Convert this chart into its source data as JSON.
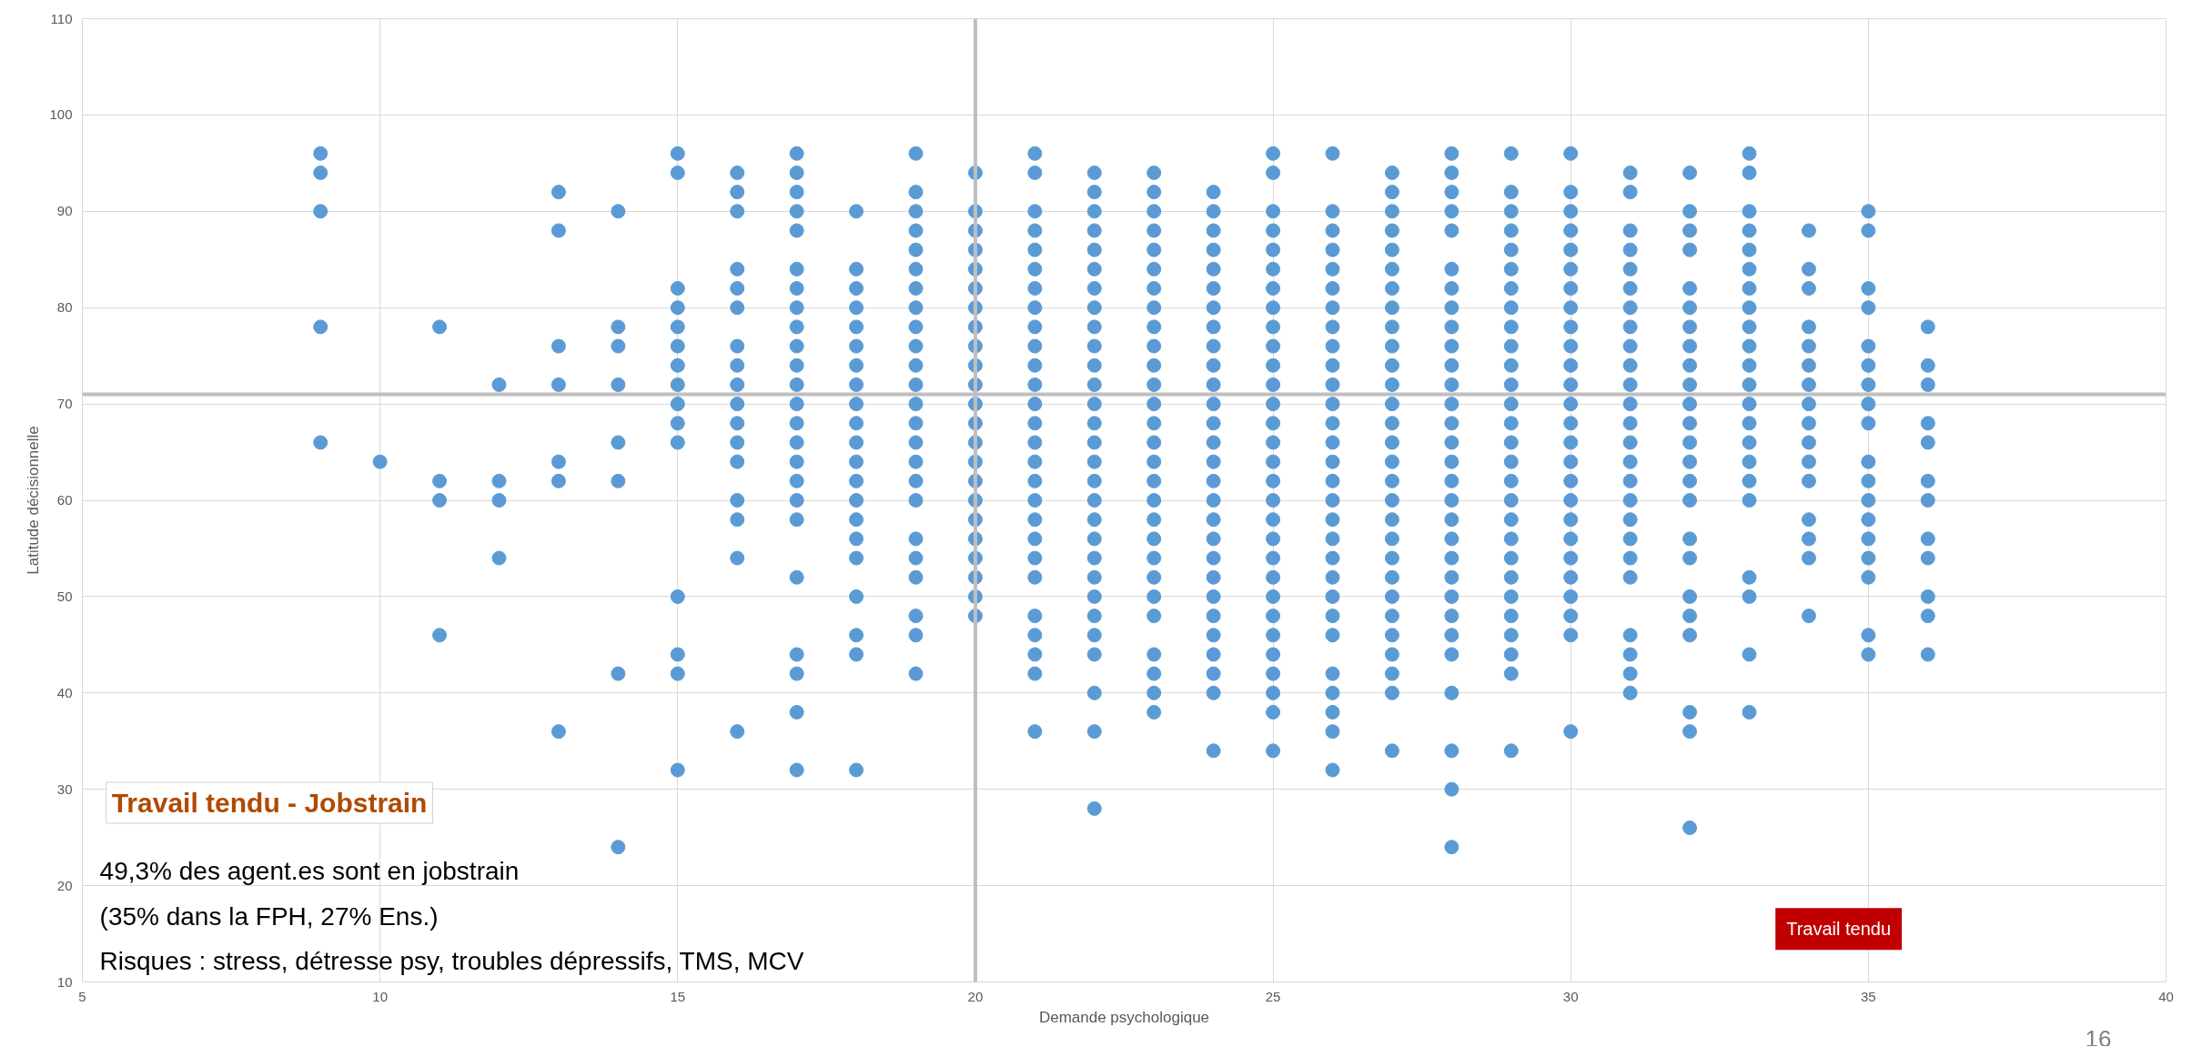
{
  "chart_data": {
    "type": "scatter",
    "xlabel": "Demande psychologique",
    "ylabel": "Latitude décisionnelle",
    "xlim": [
      5,
      40
    ],
    "ylim": [
      10,
      110
    ],
    "xticks": [
      5,
      10,
      15,
      20,
      25,
      30,
      35,
      40
    ],
    "yticks": [
      10,
      20,
      30,
      40,
      50,
      60,
      70,
      80,
      90,
      100,
      110
    ],
    "grid": true,
    "marker": "circle",
    "ref_lines": [
      {
        "axis": "x",
        "value": 20,
        "color": "#bfbfbf"
      },
      {
        "axis": "y",
        "value": 71,
        "color": "#bfbfbf"
      }
    ],
    "annotations": [
      "Travail tendu - Jobstrain",
      "49,3% des agent.es sont en jobstrain",
      "(35% dans la FPH, 27% Ens.)",
      "Risques : stress, détresse psy, troubles dépressifs, TMS, MCV",
      "Travail tendu",
      "16"
    ],
    "series": [
      {
        "color": "#5b9bd5",
        "x": [
          9,
          9,
          9,
          9,
          9
        ],
        "values": [
          96,
          94,
          90,
          78,
          66
        ]
      },
      {
        "color": "#5b9bd5",
        "x": [
          10
        ],
        "values": [
          64
        ]
      },
      {
        "color": "#5b9bd5",
        "x": [
          11,
          11,
          11,
          11
        ],
        "values": [
          78,
          62,
          60,
          46
        ]
      },
      {
        "color": "#5b9bd5",
        "x": [
          12,
          12,
          12,
          12
        ],
        "values": [
          72,
          62,
          60,
          54
        ]
      },
      {
        "color": "#5b9bd5",
        "x": [
          13,
          13,
          13,
          13,
          13,
          13,
          13
        ],
        "values": [
          92,
          88,
          76,
          72,
          64,
          62,
          36
        ]
      },
      {
        "color": "#5b9bd5",
        "x": [
          14,
          14,
          14,
          14,
          14,
          14,
          14,
          14
        ],
        "values": [
          90,
          78,
          76,
          72,
          66,
          62,
          42,
          24
        ]
      },
      {
        "color": "#5b9bd5",
        "x": [
          15,
          15,
          15,
          15,
          15,
          15,
          15,
          15,
          15,
          15,
          15,
          15,
          15,
          15,
          15
        ],
        "values": [
          96,
          94,
          82,
          80,
          78,
          76,
          74,
          72,
          70,
          68,
          66,
          50,
          44,
          42,
          32
        ]
      },
      {
        "color": "#5b9bd5",
        "x": [
          16,
          16,
          16,
          16,
          16,
          16,
          16,
          16,
          16,
          16,
          16,
          16,
          16,
          16,
          16,
          16,
          16
        ],
        "values": [
          94,
          92,
          90,
          84,
          82,
          80,
          76,
          74,
          72,
          70,
          68,
          66,
          64,
          60,
          58,
          54,
          36
        ]
      },
      {
        "color": "#5b9bd5",
        "x": [
          17,
          17,
          17,
          17,
          17,
          17,
          17,
          17,
          17,
          17,
          17,
          17,
          17,
          17,
          17,
          17,
          17,
          17,
          17,
          17,
          17,
          17,
          17,
          17
        ],
        "values": [
          96,
          94,
          92,
          90,
          88,
          84,
          82,
          80,
          78,
          76,
          74,
          72,
          70,
          68,
          66,
          64,
          62,
          60,
          58,
          52,
          44,
          42,
          38,
          32
        ]
      },
      {
        "color": "#5b9bd5",
        "x": [
          18,
          18,
          18,
          18,
          18,
          18,
          18,
          18,
          18,
          18,
          18,
          18,
          18,
          18,
          18,
          18,
          18,
          18,
          18,
          18,
          18
        ],
        "values": [
          90,
          84,
          82,
          80,
          78,
          76,
          74,
          72,
          70,
          68,
          66,
          64,
          62,
          60,
          58,
          56,
          54,
          50,
          46,
          44,
          32
        ]
      },
      {
        "color": "#5b9bd5",
        "x": [
          19,
          19,
          19,
          19,
          19,
          19,
          19,
          19,
          19,
          19,
          19,
          19,
          19,
          19,
          19,
          19,
          19,
          19,
          19,
          19,
          19,
          19,
          19,
          19
        ],
        "values": [
          96,
          92,
          90,
          88,
          86,
          84,
          82,
          80,
          78,
          76,
          74,
          72,
          70,
          68,
          66,
          64,
          62,
          60,
          56,
          54,
          52,
          48,
          46,
          42
        ]
      },
      {
        "color": "#5b9bd5",
        "x": [
          20,
          20,
          20,
          20,
          20,
          20,
          20,
          20,
          20,
          20,
          20,
          20,
          20,
          20,
          20,
          20,
          20,
          20,
          20,
          20,
          20,
          20,
          20
        ],
        "values": [
          94,
          90,
          88,
          86,
          84,
          82,
          80,
          78,
          76,
          74,
          72,
          70,
          68,
          66,
          64,
          62,
          60,
          58,
          56,
          54,
          52,
          50,
          48
        ]
      },
      {
        "color": "#5b9bd5",
        "x": [
          21,
          21,
          21,
          21,
          21,
          21,
          21,
          21,
          21,
          21,
          21,
          21,
          21,
          21,
          21,
          21,
          21,
          21,
          21,
          21,
          21,
          21,
          21,
          21,
          21,
          21,
          21
        ],
        "values": [
          96,
          94,
          90,
          88,
          86,
          84,
          82,
          80,
          78,
          76,
          74,
          72,
          70,
          68,
          66,
          64,
          62,
          60,
          58,
          56,
          54,
          52,
          48,
          46,
          44,
          42,
          36
        ]
      },
      {
        "color": "#5b9bd5",
        "x": [
          22,
          22,
          22,
          22,
          22,
          22,
          22,
          22,
          22,
          22,
          22,
          22,
          22,
          22,
          22,
          22,
          22,
          22,
          22,
          22,
          22,
          22,
          22,
          22,
          22,
          22,
          22,
          22,
          22
        ],
        "values": [
          94,
          92,
          90,
          88,
          86,
          84,
          82,
          80,
          78,
          76,
          74,
          72,
          70,
          68,
          66,
          64,
          62,
          60,
          58,
          56,
          54,
          52,
          50,
          48,
          46,
          44,
          40,
          36,
          28
        ]
      },
      {
        "color": "#5b9bd5",
        "x": [
          23,
          23,
          23,
          23,
          23,
          23,
          23,
          23,
          23,
          23,
          23,
          23,
          23,
          23,
          23,
          23,
          23,
          23,
          23,
          23,
          23,
          23,
          23,
          23,
          23,
          23,
          23,
          23
        ],
        "values": [
          94,
          92,
          90,
          88,
          86,
          84,
          82,
          80,
          78,
          76,
          74,
          72,
          70,
          68,
          66,
          64,
          62,
          60,
          58,
          56,
          54,
          52,
          50,
          48,
          44,
          42,
          40,
          38
        ]
      },
      {
        "color": "#5b9bd5",
        "x": [
          24,
          24,
          24,
          24,
          24,
          24,
          24,
          24,
          24,
          24,
          24,
          24,
          24,
          24,
          24,
          24,
          24,
          24,
          24,
          24,
          24,
          24,
          24,
          24,
          24,
          24,
          24,
          24
        ],
        "values": [
          92,
          90,
          88,
          86,
          84,
          82,
          80,
          78,
          76,
          74,
          72,
          70,
          68,
          66,
          64,
          62,
          60,
          58,
          56,
          54,
          52,
          50,
          48,
          46,
          44,
          42,
          40,
          34
        ]
      },
      {
        "color": "#5b9bd5",
        "x": [
          25,
          25,
          25,
          25,
          25,
          25,
          25,
          25,
          25,
          25,
          25,
          25,
          25,
          25,
          25,
          25,
          25,
          25,
          25,
          25,
          25,
          25,
          25,
          25,
          25,
          25,
          25,
          25,
          25,
          25
        ],
        "values": [
          96,
          94,
          90,
          88,
          86,
          84,
          82,
          80,
          78,
          76,
          74,
          72,
          70,
          68,
          66,
          64,
          62,
          60,
          58,
          56,
          54,
          52,
          50,
          48,
          46,
          44,
          42,
          40,
          38,
          34
        ]
      },
      {
        "color": "#5b9bd5",
        "x": [
          26,
          26,
          26,
          26,
          26,
          26,
          26,
          26,
          26,
          26,
          26,
          26,
          26,
          26,
          26,
          26,
          26,
          26,
          26,
          26,
          26,
          26,
          26,
          26,
          26,
          26,
          26,
          26,
          26
        ],
        "values": [
          96,
          90,
          88,
          86,
          84,
          82,
          80,
          78,
          76,
          74,
          72,
          70,
          68,
          66,
          64,
          62,
          60,
          58,
          56,
          54,
          52,
          50,
          48,
          46,
          42,
          40,
          38,
          36,
          32
        ]
      },
      {
        "color": "#5b9bd5",
        "x": [
          27,
          27,
          27,
          27,
          27,
          27,
          27,
          27,
          27,
          27,
          27,
          27,
          27,
          27,
          27,
          27,
          27,
          27,
          27,
          27,
          27,
          27,
          27,
          27,
          27,
          27,
          27,
          27,
          27
        ],
        "values": [
          94,
          92,
          90,
          88,
          86,
          84,
          82,
          80,
          78,
          76,
          74,
          72,
          70,
          68,
          66,
          64,
          62,
          60,
          58,
          56,
          54,
          52,
          50,
          48,
          46,
          44,
          42,
          40,
          34
        ]
      },
      {
        "color": "#5b9bd5",
        "x": [
          28,
          28,
          28,
          28,
          28,
          28,
          28,
          28,
          28,
          28,
          28,
          28,
          28,
          28,
          28,
          28,
          28,
          28,
          28,
          28,
          28,
          28,
          28,
          28,
          28,
          28,
          28,
          28,
          28,
          28
        ],
        "values": [
          96,
          94,
          92,
          90,
          88,
          84,
          82,
          80,
          78,
          76,
          74,
          72,
          70,
          68,
          66,
          64,
          62,
          60,
          58,
          56,
          54,
          52,
          50,
          48,
          46,
          44,
          40,
          34,
          30,
          24
        ]
      },
      {
        "color": "#5b9bd5",
        "x": [
          29,
          29,
          29,
          29,
          29,
          29,
          29,
          29,
          29,
          29,
          29,
          29,
          29,
          29,
          29,
          29,
          29,
          29,
          29,
          29,
          29,
          29,
          29,
          29,
          29,
          29,
          29,
          29
        ],
        "values": [
          96,
          92,
          90,
          88,
          86,
          84,
          82,
          80,
          78,
          76,
          74,
          72,
          70,
          68,
          66,
          64,
          62,
          60,
          58,
          56,
          54,
          52,
          50,
          48,
          46,
          44,
          42,
          34
        ]
      },
      {
        "color": "#5b9bd5",
        "x": [
          30,
          30,
          30,
          30,
          30,
          30,
          30,
          30,
          30,
          30,
          30,
          30,
          30,
          30,
          30,
          30,
          30,
          30,
          30,
          30,
          30,
          30,
          30,
          30,
          30,
          30
        ],
        "values": [
          96,
          92,
          90,
          88,
          86,
          84,
          82,
          80,
          78,
          76,
          74,
          72,
          70,
          68,
          66,
          64,
          62,
          60,
          58,
          56,
          54,
          52,
          50,
          48,
          46,
          36
        ]
      },
      {
        "color": "#5b9bd5",
        "x": [
          31,
          31,
          31,
          31,
          31,
          31,
          31,
          31,
          31,
          31,
          31,
          31,
          31,
          31,
          31,
          31,
          31,
          31,
          31,
          31,
          31,
          31,
          31,
          31,
          31
        ],
        "values": [
          94,
          92,
          88,
          86,
          84,
          82,
          80,
          78,
          76,
          74,
          72,
          70,
          68,
          66,
          64,
          62,
          60,
          58,
          56,
          54,
          52,
          46,
          44,
          42,
          40
        ]
      },
      {
        "color": "#5b9bd5",
        "x": [
          32,
          32,
          32,
          32,
          32,
          32,
          32,
          32,
          32,
          32,
          32,
          32,
          32,
          32,
          32,
          32,
          32,
          32,
          32,
          32,
          32,
          32,
          32,
          32
        ],
        "values": [
          94,
          90,
          88,
          86,
          82,
          80,
          78,
          76,
          74,
          72,
          70,
          68,
          66,
          64,
          62,
          60,
          56,
          54,
          50,
          48,
          46,
          38,
          36,
          26
        ]
      },
      {
        "color": "#5b9bd5",
        "x": [
          33,
          33,
          33,
          33,
          33,
          33,
          33,
          33,
          33,
          33,
          33,
          33,
          33,
          33,
          33,
          33,
          33,
          33,
          33,
          33,
          33,
          33
        ],
        "values": [
          96,
          94,
          90,
          88,
          86,
          84,
          82,
          80,
          78,
          76,
          74,
          72,
          70,
          68,
          66,
          64,
          62,
          60,
          52,
          50,
          44,
          38
        ]
      },
      {
        "color": "#5b9bd5",
        "x": [
          34,
          34,
          34,
          34,
          34,
          34,
          34,
          34,
          34,
          34,
          34,
          34,
          34,
          34,
          34,
          34
        ],
        "values": [
          88,
          84,
          82,
          78,
          76,
          74,
          72,
          70,
          68,
          66,
          64,
          62,
          58,
          56,
          54,
          48
        ]
      },
      {
        "color": "#5b9bd5",
        "x": [
          35,
          35,
          35,
          35,
          35,
          35,
          35,
          35,
          35,
          35,
          35,
          35,
          35,
          35,
          35,
          35,
          35,
          35
        ],
        "values": [
          90,
          88,
          82,
          80,
          76,
          74,
          72,
          70,
          68,
          64,
          62,
          60,
          58,
          56,
          54,
          52,
          46,
          44
        ]
      },
      {
        "color": "#5b9bd5",
        "x": [
          36,
          36,
          36,
          36,
          36,
          36,
          36,
          36,
          36,
          36,
          36,
          36
        ],
        "values": [
          78,
          74,
          72,
          68,
          66,
          62,
          60,
          56,
          54,
          50,
          48,
          44
        ]
      }
    ]
  }
}
